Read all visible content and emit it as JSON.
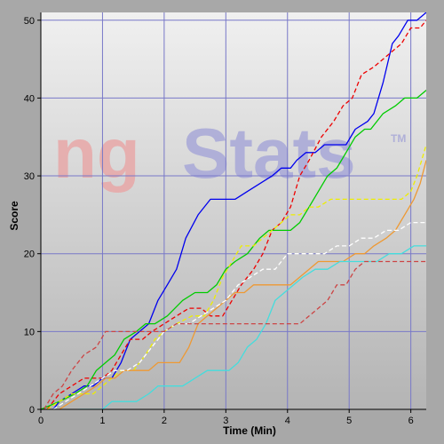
{
  "chart_data": {
    "type": "line",
    "title": "",
    "xlabel": "Time (Min)",
    "ylabel": "Score",
    "xlim": [
      0,
      6.25
    ],
    "ylim": [
      0,
      51
    ],
    "xticks": [
      0,
      1,
      2,
      3,
      4,
      5,
      6
    ],
    "yticks": [
      0,
      10,
      20,
      30,
      40,
      50
    ],
    "x_tick_labels": [
      "0",
      "1",
      "2",
      "3",
      "4",
      "5",
      "6"
    ],
    "y_tick_labels": [
      "0",
      "10",
      "20",
      "30",
      "40",
      "50"
    ],
    "grid": true,
    "legend": "none",
    "watermark": "ngStats",
    "watermark_mark": "TM",
    "colors": {
      "frame": "#a8a8a8",
      "plot_bg_top": "#f0f0f0",
      "plot_bg_bottom": "#b4b4b4",
      "grid": "#7878c8",
      "text": "#000000",
      "watermark_red": "#e8a8a8",
      "watermark_blue": "#a8a8d8"
    },
    "series": [
      {
        "color": "#0000ee",
        "dash": false,
        "points": [
          [
            0.2,
            0
          ],
          [
            0.3,
            1
          ],
          [
            0.5,
            2
          ],
          [
            0.7,
            3
          ],
          [
            0.85,
            3
          ],
          [
            1.0,
            4
          ],
          [
            1.15,
            4
          ],
          [
            1.3,
            6
          ],
          [
            1.45,
            9
          ],
          [
            1.6,
            10
          ],
          [
            1.75,
            11
          ],
          [
            1.9,
            14
          ],
          [
            2.05,
            16
          ],
          [
            2.2,
            18
          ],
          [
            2.35,
            22
          ],
          [
            2.55,
            25
          ],
          [
            2.75,
            27
          ],
          [
            3.0,
            27
          ],
          [
            3.15,
            27
          ],
          [
            3.35,
            28
          ],
          [
            3.55,
            29
          ],
          [
            3.75,
            30
          ],
          [
            3.9,
            31
          ],
          [
            4.05,
            31
          ],
          [
            4.15,
            32
          ],
          [
            4.3,
            33
          ],
          [
            4.45,
            33
          ],
          [
            4.6,
            34
          ],
          [
            4.75,
            34
          ],
          [
            4.95,
            34
          ],
          [
            5.1,
            36
          ],
          [
            5.3,
            37
          ],
          [
            5.4,
            38
          ],
          [
            5.55,
            42
          ],
          [
            5.7,
            47
          ],
          [
            5.8,
            48
          ],
          [
            5.95,
            50
          ],
          [
            6.1,
            50
          ],
          [
            6.25,
            51
          ]
        ]
      },
      {
        "color": "#ee0000",
        "dash": true,
        "points": [
          [
            0.1,
            0
          ],
          [
            0.3,
            2
          ],
          [
            0.5,
            3
          ],
          [
            0.7,
            4
          ],
          [
            0.9,
            4
          ],
          [
            1.0,
            4
          ],
          [
            1.15,
            5
          ],
          [
            1.3,
            7
          ],
          [
            1.45,
            9
          ],
          [
            1.65,
            9
          ],
          [
            1.8,
            10
          ],
          [
            2.0,
            11
          ],
          [
            2.2,
            12
          ],
          [
            2.4,
            13
          ],
          [
            2.6,
            13
          ],
          [
            2.75,
            12
          ],
          [
            2.95,
            12
          ],
          [
            3.1,
            14
          ],
          [
            3.25,
            16
          ],
          [
            3.45,
            18
          ],
          [
            3.6,
            20
          ],
          [
            3.75,
            23
          ],
          [
            3.9,
            24
          ],
          [
            4.05,
            26
          ],
          [
            4.2,
            30
          ],
          [
            4.35,
            32
          ],
          [
            4.55,
            35
          ],
          [
            4.75,
            37
          ],
          [
            4.9,
            39
          ],
          [
            5.05,
            40
          ],
          [
            5.2,
            43
          ],
          [
            5.4,
            44
          ],
          [
            5.55,
            45
          ],
          [
            5.7,
            46
          ],
          [
            5.85,
            47
          ],
          [
            6.0,
            49
          ],
          [
            6.15,
            49
          ],
          [
            6.25,
            50
          ]
        ]
      },
      {
        "color": "#00cc00",
        "dash": false,
        "points": [
          [
            0.0,
            0
          ],
          [
            0.3,
            1
          ],
          [
            0.55,
            2
          ],
          [
            0.75,
            3
          ],
          [
            0.9,
            5
          ],
          [
            1.05,
            6
          ],
          [
            1.2,
            7
          ],
          [
            1.35,
            9
          ],
          [
            1.55,
            10
          ],
          [
            1.7,
            11
          ],
          [
            1.85,
            11
          ],
          [
            2.05,
            12
          ],
          [
            2.3,
            14
          ],
          [
            2.5,
            15
          ],
          [
            2.7,
            15
          ],
          [
            2.85,
            16
          ],
          [
            3.0,
            18
          ],
          [
            3.15,
            19
          ],
          [
            3.35,
            20
          ],
          [
            3.55,
            22
          ],
          [
            3.7,
            23
          ],
          [
            3.9,
            23
          ],
          [
            4.05,
            23
          ],
          [
            4.2,
            24
          ],
          [
            4.35,
            26
          ],
          [
            4.5,
            28
          ],
          [
            4.65,
            30
          ],
          [
            4.8,
            31
          ],
          [
            4.95,
            33
          ],
          [
            5.1,
            35
          ],
          [
            5.25,
            36
          ],
          [
            5.35,
            36
          ],
          [
            5.55,
            38
          ],
          [
            5.75,
            39
          ],
          [
            5.9,
            40
          ],
          [
            6.1,
            40
          ],
          [
            6.25,
            41
          ]
        ]
      },
      {
        "color": "#eeee00",
        "dash": true,
        "points": [
          [
            0.1,
            0
          ],
          [
            0.3,
            1
          ],
          [
            0.5,
            2
          ],
          [
            0.7,
            2
          ],
          [
            0.85,
            2
          ],
          [
            1.0,
            3
          ],
          [
            1.15,
            4
          ],
          [
            1.3,
            5
          ],
          [
            1.5,
            5
          ],
          [
            1.7,
            7
          ],
          [
            1.85,
            9
          ],
          [
            2.0,
            10
          ],
          [
            2.2,
            11
          ],
          [
            2.45,
            12
          ],
          [
            2.65,
            12
          ],
          [
            2.8,
            14
          ],
          [
            2.95,
            17
          ],
          [
            3.1,
            19
          ],
          [
            3.25,
            21
          ],
          [
            3.45,
            21
          ],
          [
            3.6,
            22
          ],
          [
            3.75,
            23
          ],
          [
            3.9,
            24
          ],
          [
            4.05,
            25
          ],
          [
            4.2,
            25
          ],
          [
            4.35,
            26
          ],
          [
            4.5,
            26
          ],
          [
            4.7,
            27
          ],
          [
            4.9,
            27
          ],
          [
            5.1,
            27
          ],
          [
            5.3,
            27
          ],
          [
            5.5,
            27
          ],
          [
            5.7,
            27
          ],
          [
            5.85,
            27
          ],
          [
            6.0,
            28
          ],
          [
            6.1,
            30
          ],
          [
            6.25,
            34
          ]
        ]
      },
      {
        "color": "#ee9933",
        "dash": false,
        "points": [
          [
            0.3,
            0
          ],
          [
            0.5,
            1
          ],
          [
            0.7,
            2
          ],
          [
            0.9,
            3
          ],
          [
            1.05,
            4
          ],
          [
            1.2,
            4
          ],
          [
            1.35,
            5
          ],
          [
            1.55,
            5
          ],
          [
            1.75,
            5
          ],
          [
            1.9,
            6
          ],
          [
            2.05,
            6
          ],
          [
            2.25,
            6
          ],
          [
            2.4,
            8
          ],
          [
            2.55,
            11
          ],
          [
            2.7,
            12
          ],
          [
            2.85,
            13
          ],
          [
            3.0,
            14
          ],
          [
            3.15,
            15
          ],
          [
            3.3,
            15
          ],
          [
            3.45,
            16
          ],
          [
            3.65,
            16
          ],
          [
            3.85,
            16
          ],
          [
            4.05,
            16
          ],
          [
            4.2,
            17
          ],
          [
            4.35,
            18
          ],
          [
            4.5,
            19
          ],
          [
            4.7,
            19
          ],
          [
            4.9,
            19
          ],
          [
            5.1,
            20
          ],
          [
            5.25,
            20
          ],
          [
            5.4,
            21
          ],
          [
            5.6,
            22
          ],
          [
            5.75,
            23
          ],
          [
            5.9,
            25
          ],
          [
            6.05,
            27
          ],
          [
            6.15,
            29
          ],
          [
            6.25,
            32
          ]
        ]
      },
      {
        "color": "#ffffff",
        "dash": true,
        "points": [
          [
            0.2,
            0
          ],
          [
            0.4,
            1
          ],
          [
            0.6,
            2
          ],
          [
            0.8,
            3
          ],
          [
            1.0,
            4
          ],
          [
            1.2,
            5
          ],
          [
            1.4,
            5
          ],
          [
            1.6,
            6
          ],
          [
            1.8,
            8
          ],
          [
            2.0,
            10
          ],
          [
            2.2,
            11
          ],
          [
            2.4,
            11
          ],
          [
            2.6,
            12
          ],
          [
            2.8,
            13
          ],
          [
            3.0,
            14
          ],
          [
            3.2,
            16
          ],
          [
            3.4,
            17
          ],
          [
            3.6,
            18
          ],
          [
            3.8,
            18
          ],
          [
            4.0,
            20
          ],
          [
            4.2,
            20
          ],
          [
            4.4,
            20
          ],
          [
            4.6,
            20
          ],
          [
            4.8,
            21
          ],
          [
            5.0,
            21
          ],
          [
            5.2,
            22
          ],
          [
            5.4,
            22
          ],
          [
            5.6,
            23
          ],
          [
            5.8,
            23
          ],
          [
            6.0,
            24
          ],
          [
            6.25,
            24
          ]
        ]
      },
      {
        "color": "#44dddd",
        "dash": false,
        "points": [
          [
            0.6,
            0
          ],
          [
            0.8,
            0
          ],
          [
            1.0,
            0
          ],
          [
            1.15,
            1
          ],
          [
            1.35,
            1
          ],
          [
            1.55,
            1
          ],
          [
            1.75,
            2
          ],
          [
            1.9,
            3
          ],
          [
            2.1,
            3
          ],
          [
            2.3,
            3
          ],
          [
            2.5,
            4
          ],
          [
            2.7,
            5
          ],
          [
            2.9,
            5
          ],
          [
            3.05,
            5
          ],
          [
            3.2,
            6
          ],
          [
            3.35,
            8
          ],
          [
            3.5,
            9
          ],
          [
            3.65,
            11
          ],
          [
            3.8,
            14
          ],
          [
            3.95,
            15
          ],
          [
            4.1,
            16
          ],
          [
            4.25,
            17
          ],
          [
            4.45,
            18
          ],
          [
            4.65,
            18
          ],
          [
            4.85,
            19
          ],
          [
            5.05,
            19
          ],
          [
            5.25,
            19
          ],
          [
            5.45,
            19
          ],
          [
            5.65,
            20
          ],
          [
            5.85,
            20
          ],
          [
            6.05,
            21
          ],
          [
            6.25,
            21
          ]
        ]
      },
      {
        "color": "#cc4444",
        "dash": true,
        "points": [
          [
            0.05,
            0
          ],
          [
            0.2,
            2
          ],
          [
            0.35,
            3
          ],
          [
            0.5,
            5
          ],
          [
            0.7,
            7
          ],
          [
            0.9,
            8
          ],
          [
            1.05,
            10
          ],
          [
            1.25,
            10
          ],
          [
            1.5,
            10
          ],
          [
            1.75,
            10
          ],
          [
            2.0,
            10
          ],
          [
            2.2,
            11
          ],
          [
            2.4,
            11
          ],
          [
            2.6,
            11
          ],
          [
            2.8,
            11
          ],
          [
            3.0,
            11
          ],
          [
            3.2,
            11
          ],
          [
            3.4,
            11
          ],
          [
            3.6,
            11
          ],
          [
            3.8,
            11
          ],
          [
            4.0,
            11
          ],
          [
            4.2,
            11
          ],
          [
            4.35,
            12
          ],
          [
            4.5,
            13
          ],
          [
            4.65,
            14
          ],
          [
            4.8,
            16
          ],
          [
            4.95,
            16
          ],
          [
            5.1,
            18
          ],
          [
            5.25,
            19
          ],
          [
            5.45,
            19
          ],
          [
            5.65,
            19
          ],
          [
            5.85,
            19
          ],
          [
            6.05,
            19
          ],
          [
            6.25,
            19
          ]
        ]
      }
    ]
  }
}
